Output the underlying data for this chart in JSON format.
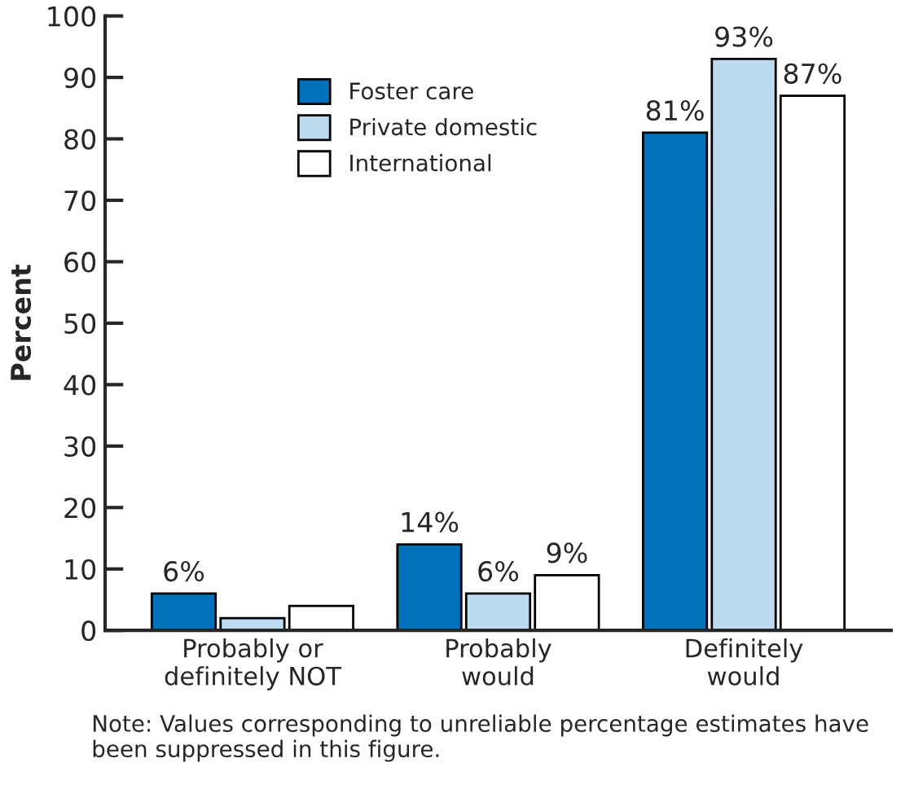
{
  "chart_data": {
    "type": "bar",
    "ylabel": "Percent",
    "categories": [
      "Probably or\ndefinitely NOT",
      "Probably\nwould",
      "Definitely\nwould"
    ],
    "series": [
      {
        "name": "Foster care",
        "color": "#0072bc",
        "values": [
          6,
          14,
          81
        ],
        "value_labels": [
          "6%",
          "14%",
          "81%"
        ]
      },
      {
        "name": "Private domestic",
        "color": "#bcdaf0",
        "values": [
          2,
          6,
          93
        ],
        "value_labels": [
          null,
          "6%",
          "93%"
        ]
      },
      {
        "name": "International",
        "color": "#ffffff",
        "values": [
          4,
          9,
          87
        ],
        "value_labels": [
          null,
          "9%",
          "87%"
        ]
      }
    ],
    "ylim": [
      0,
      100
    ],
    "yticks": [
      0,
      10,
      20,
      30,
      40,
      50,
      60,
      70,
      80,
      90,
      100
    ],
    "grid": false,
    "legend": "top left",
    "annotations": [
      "Note: Values corresponding to unreliable percentage estimates have been suppressed in this figure."
    ]
  }
}
